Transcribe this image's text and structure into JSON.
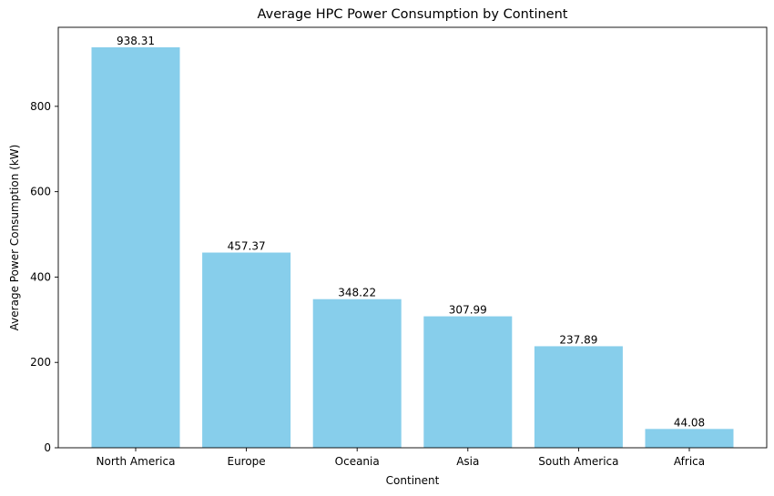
{
  "chart_data": {
    "type": "bar",
    "title": "Average HPC Power Consumption by Continent",
    "xlabel": "Continent",
    "ylabel": "Average Power Consumption (kW)",
    "categories": [
      "North America",
      "Europe",
      "Oceania",
      "Asia",
      "South America",
      "Africa"
    ],
    "values": [
      938.31,
      457.37,
      348.22,
      307.99,
      237.89,
      44.08
    ],
    "data_labels": [
      "938.31",
      "457.37",
      "348.22",
      "307.99",
      "237.89",
      "44.08"
    ],
    "ylim": [
      0,
      985.2
    ],
    "yticks": [
      0,
      200,
      400,
      600,
      800
    ],
    "bar_color": "#87CEEB",
    "grid": false,
    "legend": false
  }
}
